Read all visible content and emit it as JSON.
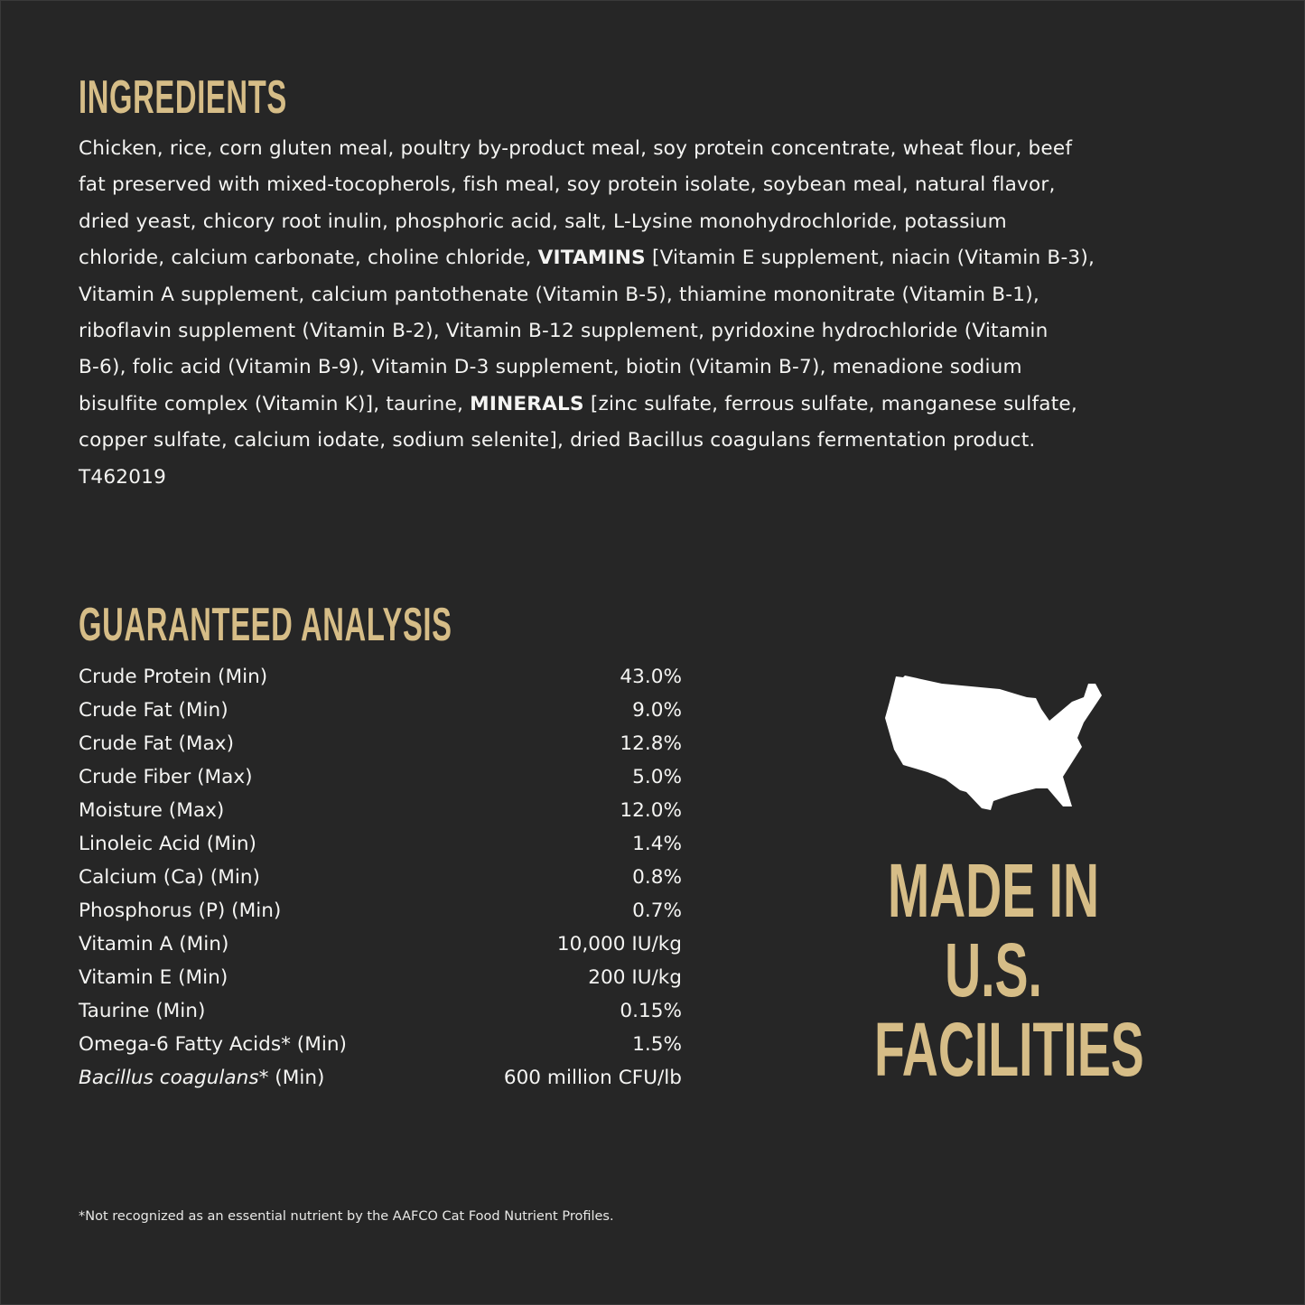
{
  "colors": {
    "background": "#262626",
    "accent": "#d6bd87",
    "text": "#f4f4f2"
  },
  "ingredients": {
    "title": "INGREDIENTS",
    "lines": [
      [
        {
          "text": "Chicken, rice, corn gluten meal, poultry by-product meal, soy protein concentrate, wheat flour, beef"
        }
      ],
      [
        {
          "text": "fat preserved with mixed-tocopherols, fish meal, soy protein isolate, soybean meal, natural flavor,"
        }
      ],
      [
        {
          "text": "dried yeast, chicory root inulin, phosphoric acid, salt, L-Lysine monohydrochloride, potassium"
        }
      ],
      [
        {
          "text": "chloride, calcium carbonate, choline chloride, "
        },
        {
          "text": "VITAMINS",
          "bold": true
        },
        {
          "text": " [Vitamin E supplement, niacin (Vitamin B-3),"
        }
      ],
      [
        {
          "text": "Vitamin A supplement, calcium pantothenate (Vitamin B-5), thiamine mononitrate (Vitamin B-1),"
        }
      ],
      [
        {
          "text": "riboflavin supplement (Vitamin B-2), Vitamin B-12 supplement, pyridoxine hydrochloride (Vitamin"
        }
      ],
      [
        {
          "text": "B-6), folic acid (Vitamin B-9), Vitamin D-3 supplement, biotin (Vitamin B-7), menadione sodium"
        }
      ],
      [
        {
          "text": "bisulfite complex (Vitamin K)], taurine, "
        },
        {
          "text": "MINERALS",
          "bold": true
        },
        {
          "text": " [zinc sulfate, ferrous sulfate, manganese sulfate,"
        }
      ],
      [
        {
          "text": "copper sulfate, calcium iodate, sodium selenite], dried Bacillus coagulans fermentation product."
        }
      ],
      [
        {
          "text": "T462019"
        }
      ]
    ]
  },
  "analysis": {
    "title": "GUARANTEED ANALYSIS",
    "rows": [
      {
        "label": "Crude Protein (Min)",
        "value": "43.0%"
      },
      {
        "label": "Crude Fat (Min)",
        "value": "9.0%"
      },
      {
        "label": "Crude Fat (Max)",
        "value": "12.8%"
      },
      {
        "label": "Crude Fiber (Max)",
        "value": "5.0%"
      },
      {
        "label": "Moisture (Max)",
        "value": "12.0%"
      },
      {
        "label": "Linoleic Acid (Min)",
        "value": "1.4%"
      },
      {
        "label": "Calcium (Ca) (Min)",
        "value": "0.8%"
      },
      {
        "label": "Phosphorus (P) (Min)",
        "value": "0.7%"
      },
      {
        "label": "Vitamin A (Min)",
        "value": "10,000 IU/kg"
      },
      {
        "label": "Vitamin E (Min)",
        "value": "200 IU/kg"
      },
      {
        "label": "Taurine (Min)",
        "value": "0.15%"
      },
      {
        "label": "Omega-6 Fatty Acids* (Min)",
        "value": "1.5%"
      },
      {
        "label_italic": "Bacillus coagulans",
        "label": "* (Min)",
        "value": "600 million CFU/lb"
      }
    ]
  },
  "badge": {
    "icon": "usa-map-icon",
    "lines": [
      "MADE IN",
      "U.S.",
      "FACILITIES"
    ]
  },
  "footnote": "*Not recognized as an essential nutrient by the AAFCO Cat Food Nutrient Profiles."
}
